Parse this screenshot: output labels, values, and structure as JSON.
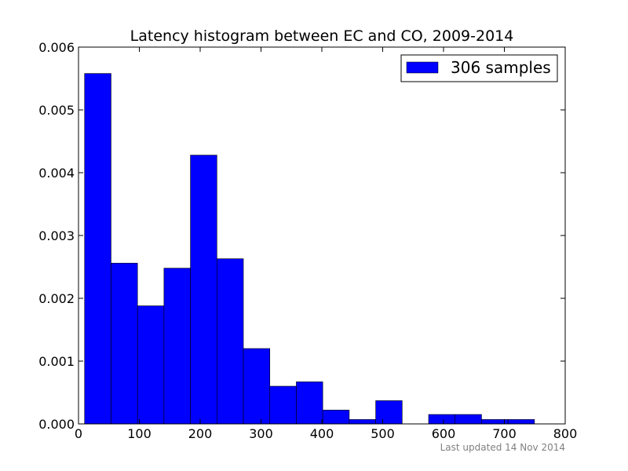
{
  "chart_data": {
    "type": "bar",
    "title": "Latency histogram between EC and CO, 2009-2014",
    "xlabel": "",
    "ylabel": "",
    "xlim": [
      0,
      800
    ],
    "ylim": [
      0,
      0.006
    ],
    "xticks": [
      "0",
      "100",
      "200",
      "300",
      "400",
      "500",
      "600",
      "700",
      "800"
    ],
    "yticks": [
      "0.000",
      "0.001",
      "0.002",
      "0.003",
      "0.004",
      "0.005",
      "0.006"
    ],
    "grid": false,
    "legend_position": "top-right",
    "bin_edges": [
      10,
      53.5,
      97,
      140.5,
      184,
      227.5,
      271,
      314.5,
      358,
      401.5,
      445,
      488.5,
      532,
      575.5,
      619,
      662.5,
      706,
      749.5
    ],
    "series": [
      {
        "name": "306 samples",
        "color": "#0000ff",
        "values": [
          0.00558,
          0.00256,
          0.00188,
          0.00248,
          0.00428,
          0.00263,
          0.0012,
          0.0006,
          0.00067,
          0.00022,
          7e-05,
          0.00037,
          0.0,
          0.00015,
          0.00015,
          7e-05,
          7e-05
        ]
      }
    ],
    "annotation": "Last updated 14 Nov 2014"
  }
}
